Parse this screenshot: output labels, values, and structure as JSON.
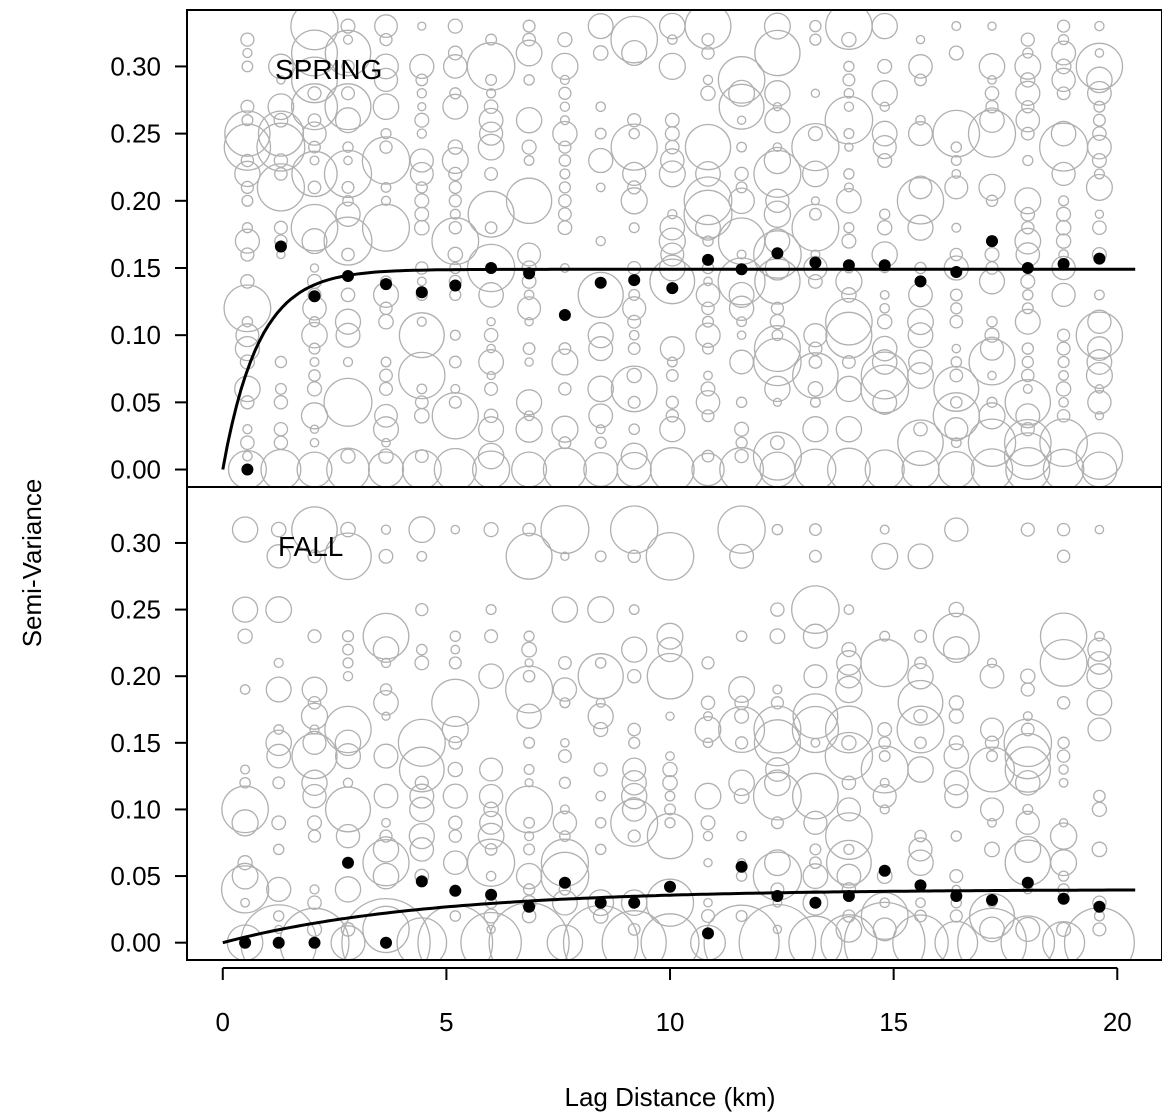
{
  "chart_data": {
    "type": "scatter",
    "xlabel": "Lag Distance (km)",
    "ylabel": "Semi-Variance",
    "xlim": [
      -0.8,
      21
    ],
    "x_ticks": [
      0,
      5,
      10,
      15,
      20
    ],
    "x_tick_labels": [
      "0",
      "5",
      "10",
      "15",
      "20"
    ],
    "y_ticks": [
      0,
      0.05,
      0.1,
      0.15,
      0.2,
      0.25,
      0.3
    ],
    "y_tick_labels": [
      "0.00",
      "0.05",
      "0.10",
      "0.15",
      "0.20",
      "0.25",
      "0.30"
    ],
    "colors": {
      "cloud": "#b0b0b0",
      "points": "#000000",
      "line": "#000000"
    },
    "panels": [
      {
        "label": "SPRING",
        "ylim": [
          -0.013,
          0.342
        ],
        "binned_semivariance": {
          "x": [
            0.55,
            1.3,
            2.05,
            2.8,
            3.65,
            4.45,
            5.2,
            6.0,
            6.85,
            7.65,
            8.45,
            9.2,
            10.05,
            10.85,
            11.6,
            12.4,
            13.25,
            14.0,
            14.8,
            15.6,
            16.4,
            17.2,
            18.0,
            18.8,
            19.6
          ],
          "y": [
            0.0,
            0.166,
            0.129,
            0.144,
            0.138,
            0.132,
            0.137,
            0.15,
            0.146,
            0.115,
            0.139,
            0.141,
            0.135,
            0.156,
            0.149,
            0.161,
            0.154,
            0.152,
            0.152,
            0.14,
            0.147,
            0.17,
            0.15,
            0.153,
            0.157
          ]
        },
        "model": {
          "type": "exponential",
          "nugget": 0,
          "sill": 0.149,
          "range": 0.8
        },
        "cloud_levels": [
          0.0,
          0.01,
          0.02,
          0.03,
          0.04,
          0.05,
          0.06,
          0.07,
          0.08,
          0.09,
          0.1,
          0.11,
          0.12,
          0.13,
          0.14,
          0.15,
          0.16,
          0.17,
          0.18,
          0.19,
          0.2,
          0.21,
          0.22,
          0.23,
          0.24,
          0.25,
          0.26,
          0.27,
          0.28,
          0.29,
          0.3,
          0.31,
          0.32,
          0.33
        ]
      },
      {
        "label": "FALL",
        "ylim": [
          -0.013,
          0.342
        ],
        "binned_semivariance": {
          "x": [
            0.5,
            1.25,
            2.05,
            2.8,
            3.65,
            4.45,
            5.2,
            6.0,
            6.85,
            7.65,
            8.45,
            9.2,
            10.0,
            10.85,
            11.6,
            12.4,
            13.25,
            14.0,
            14.8,
            15.6,
            16.4,
            17.2,
            18.0,
            18.8,
            19.6
          ],
          "y": [
            0.0,
            0.0,
            0.0,
            0.06,
            0.0,
            0.046,
            0.039,
            0.036,
            0.027,
            0.045,
            0.03,
            0.03,
            0.042,
            0.007,
            0.057,
            0.035,
            0.03,
            0.035,
            0.054,
            0.043,
            0.035,
            0.032,
            0.045,
            0.033,
            0.027
          ]
        },
        "model": {
          "type": "exponential",
          "nugget": 0,
          "sill": 0.04,
          "range": 4.5
        },
        "cloud_levels": [
          0.0,
          0.01,
          0.02,
          0.03,
          0.04,
          0.05,
          0.06,
          0.07,
          0.08,
          0.09,
          0.1,
          0.11,
          0.12,
          0.13,
          0.14,
          0.15,
          0.16,
          0.17,
          0.18,
          0.19,
          0.2,
          0.21,
          0.22,
          0.23,
          0.25,
          0.29,
          0.31
        ]
      }
    ]
  }
}
